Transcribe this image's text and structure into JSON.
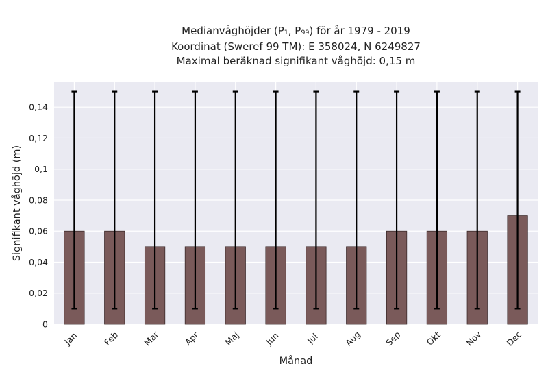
{
  "chart_data": {
    "type": "bar",
    "title_lines": [
      "Medianvåghöjder (P₁, P₉₉) för år 1979 - 2019",
      "Koordinat (Sweref 99 TM): E 358024, N 6249827",
      "Maximal beräknad signifikant våghöjd: 0,15 m"
    ],
    "xlabel": "Månad",
    "ylabel": "Signifikant våghöjd (m)",
    "categories": [
      "Jan",
      "Feb",
      "Mar",
      "Apr",
      "Maj",
      "Jun",
      "Jul",
      "Aug",
      "Sep",
      "Okt",
      "Nov",
      "Dec"
    ],
    "values": [
      0.06,
      0.06,
      0.05,
      0.05,
      0.05,
      0.05,
      0.05,
      0.05,
      0.06,
      0.06,
      0.06,
      0.07
    ],
    "error_low": [
      0.01,
      0.01,
      0.01,
      0.01,
      0.01,
      0.01,
      0.01,
      0.01,
      0.01,
      0.01,
      0.01,
      0.01
    ],
    "error_high": [
      0.15,
      0.15,
      0.15,
      0.15,
      0.15,
      0.15,
      0.15,
      0.15,
      0.15,
      0.15,
      0.15,
      0.15
    ],
    "ylim": [
      0,
      0.156
    ],
    "yticks": [
      0,
      0.02,
      0.04,
      0.06,
      0.08,
      0.1,
      0.12,
      0.14
    ],
    "ytick_labels": [
      "0",
      "0,02",
      "0,04",
      "0,06",
      "0,08",
      "0,1",
      "0,12",
      "0,14"
    ],
    "grid": true,
    "colors": {
      "bar": "#7a5a5a",
      "bar_edge": "#3d2b2b",
      "error": "#000000",
      "plot_bg": "#eaeaf2",
      "grid": "#ffffff"
    }
  }
}
